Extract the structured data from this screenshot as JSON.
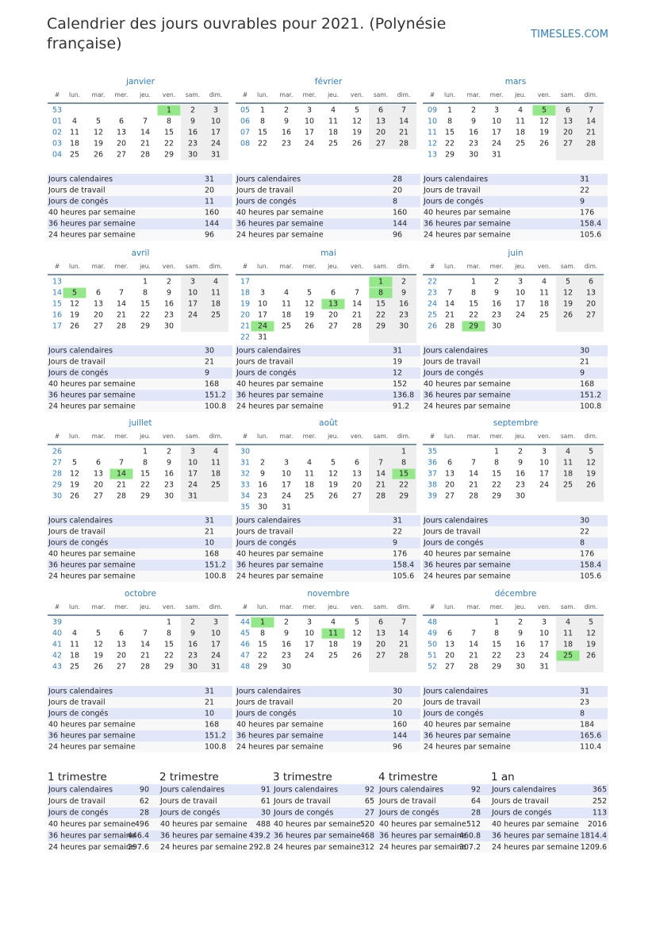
{
  "header": {
    "title": "Calendrier des jours ouvrables pour 2021. (Polynésie française)",
    "site": "TIMESLES.COM"
  },
  "weekday_header": [
    "#",
    "lun.",
    "mar.",
    "mer.",
    "jeu.",
    "ven.",
    "sam.",
    "dim."
  ],
  "stat_labels": [
    "Jours calendaires",
    "Jours de travail",
    "Jours de congés",
    "40 heures par semaine",
    "36 heures par semaine",
    "24 heures par semaine"
  ],
  "months": [
    {
      "name": "janvier",
      "holidays": [
        1
      ],
      "stats": [
        31,
        20,
        11,
        160,
        144,
        96
      ],
      "weeks": [
        {
          "num": "53",
          "days": [
            null,
            null,
            null,
            null,
            1,
            2,
            3
          ]
        },
        {
          "num": "01",
          "days": [
            4,
            5,
            6,
            7,
            8,
            9,
            10
          ]
        },
        {
          "num": "02",
          "days": [
            11,
            12,
            13,
            14,
            15,
            16,
            17
          ]
        },
        {
          "num": "03",
          "days": [
            18,
            19,
            20,
            21,
            22,
            23,
            24
          ]
        },
        {
          "num": "04",
          "days": [
            25,
            26,
            27,
            28,
            29,
            30,
            31
          ]
        }
      ]
    },
    {
      "name": "février",
      "holidays": [],
      "stats": [
        28,
        20,
        8,
        160,
        144,
        96
      ],
      "weeks": [
        {
          "num": "05",
          "days": [
            1,
            2,
            3,
            4,
            5,
            6,
            7
          ]
        },
        {
          "num": "06",
          "days": [
            8,
            9,
            10,
            11,
            12,
            13,
            14
          ]
        },
        {
          "num": "07",
          "days": [
            15,
            16,
            17,
            18,
            19,
            20,
            21
          ]
        },
        {
          "num": "08",
          "days": [
            22,
            23,
            24,
            25,
            26,
            27,
            28
          ]
        }
      ]
    },
    {
      "name": "mars",
      "holidays": [
        5
      ],
      "stats": [
        31,
        22,
        9,
        176,
        158.4,
        105.6
      ],
      "weeks": [
        {
          "num": "09",
          "days": [
            1,
            2,
            3,
            4,
            5,
            6,
            7
          ]
        },
        {
          "num": "10",
          "days": [
            8,
            9,
            10,
            11,
            12,
            13,
            14
          ]
        },
        {
          "num": "11",
          "days": [
            15,
            16,
            17,
            18,
            19,
            20,
            21
          ]
        },
        {
          "num": "12",
          "days": [
            22,
            23,
            24,
            25,
            26,
            27,
            28
          ]
        },
        {
          "num": "13",
          "days": [
            29,
            30,
            31,
            null,
            null,
            null,
            null
          ]
        }
      ]
    },
    {
      "name": "avril",
      "holidays": [
        5
      ],
      "stats": [
        30,
        21,
        9,
        168,
        151.2,
        100.8
      ],
      "weeks": [
        {
          "num": "13",
          "days": [
            null,
            null,
            null,
            1,
            2,
            3,
            4
          ]
        },
        {
          "num": "14",
          "days": [
            5,
            6,
            7,
            8,
            9,
            10,
            11
          ]
        },
        {
          "num": "15",
          "days": [
            12,
            13,
            14,
            15,
            16,
            17,
            18
          ]
        },
        {
          "num": "16",
          "days": [
            19,
            20,
            21,
            22,
            23,
            24,
            25
          ]
        },
        {
          "num": "17",
          "days": [
            26,
            27,
            28,
            29,
            30,
            null,
            null
          ]
        }
      ]
    },
    {
      "name": "mai",
      "holidays": [
        1,
        8,
        13,
        24
      ],
      "stats": [
        31,
        19,
        12,
        152,
        136.8,
        91.2
      ],
      "weeks": [
        {
          "num": "17",
          "days": [
            null,
            null,
            null,
            null,
            null,
            1,
            2
          ]
        },
        {
          "num": "18",
          "days": [
            3,
            4,
            5,
            6,
            7,
            8,
            9
          ]
        },
        {
          "num": "19",
          "days": [
            10,
            11,
            12,
            13,
            14,
            15,
            16
          ]
        },
        {
          "num": "20",
          "days": [
            17,
            18,
            19,
            20,
            21,
            22,
            23
          ]
        },
        {
          "num": "21",
          "days": [
            24,
            25,
            26,
            27,
            28,
            29,
            30
          ]
        },
        {
          "num": "22",
          "days": [
            31,
            null,
            null,
            null,
            null,
            null,
            null
          ]
        }
      ]
    },
    {
      "name": "juin",
      "holidays": [
        29
      ],
      "stats": [
        30,
        21,
        9,
        168,
        151.2,
        100.8
      ],
      "weeks": [
        {
          "num": "22",
          "days": [
            null,
            1,
            2,
            3,
            4,
            5,
            6
          ]
        },
        {
          "num": "23",
          "days": [
            7,
            8,
            9,
            10,
            11,
            12,
            13
          ]
        },
        {
          "num": "24",
          "days": [
            14,
            15,
            16,
            17,
            18,
            19,
            20
          ]
        },
        {
          "num": "25",
          "days": [
            21,
            22,
            23,
            24,
            25,
            26,
            27
          ]
        },
        {
          "num": "26",
          "days": [
            28,
            29,
            30,
            null,
            null,
            null,
            null
          ]
        }
      ]
    },
    {
      "name": "juillet",
      "holidays": [
        14
      ],
      "stats": [
        31,
        21,
        10,
        168,
        151.2,
        100.8
      ],
      "weeks": [
        {
          "num": "26",
          "days": [
            null,
            null,
            null,
            1,
            2,
            3,
            4
          ]
        },
        {
          "num": "27",
          "days": [
            5,
            6,
            7,
            8,
            9,
            10,
            11
          ]
        },
        {
          "num": "28",
          "days": [
            12,
            13,
            14,
            15,
            16,
            17,
            18
          ]
        },
        {
          "num": "29",
          "days": [
            19,
            20,
            21,
            22,
            23,
            24,
            25
          ]
        },
        {
          "num": "30",
          "days": [
            26,
            27,
            28,
            29,
            30,
            31,
            null
          ]
        }
      ]
    },
    {
      "name": "août",
      "holidays": [
        15
      ],
      "stats": [
        31,
        22,
        9,
        176,
        158.4,
        105.6
      ],
      "weeks": [
        {
          "num": "30",
          "days": [
            null,
            null,
            null,
            null,
            null,
            null,
            1
          ]
        },
        {
          "num": "31",
          "days": [
            2,
            3,
            4,
            5,
            6,
            7,
            8
          ]
        },
        {
          "num": "32",
          "days": [
            9,
            10,
            11,
            12,
            13,
            14,
            15
          ]
        },
        {
          "num": "33",
          "days": [
            16,
            17,
            18,
            19,
            20,
            21,
            22
          ]
        },
        {
          "num": "34",
          "days": [
            23,
            24,
            25,
            26,
            27,
            28,
            29
          ]
        },
        {
          "num": "35",
          "days": [
            30,
            31,
            null,
            null,
            null,
            null,
            null
          ]
        }
      ]
    },
    {
      "name": "septembre",
      "holidays": [],
      "stats": [
        30,
        22,
        8,
        176,
        158.4,
        105.6
      ],
      "weeks": [
        {
          "num": "35",
          "days": [
            null,
            null,
            1,
            2,
            3,
            4,
            5
          ]
        },
        {
          "num": "36",
          "days": [
            6,
            7,
            8,
            9,
            10,
            11,
            12
          ]
        },
        {
          "num": "37",
          "days": [
            13,
            14,
            15,
            16,
            17,
            18,
            19
          ]
        },
        {
          "num": "38",
          "days": [
            20,
            21,
            22,
            23,
            24,
            25,
            26
          ]
        },
        {
          "num": "39",
          "days": [
            27,
            28,
            29,
            30,
            null,
            null,
            null
          ]
        }
      ]
    },
    {
      "name": "octobre",
      "holidays": [],
      "stats": [
        31,
        21,
        10,
        168,
        151.2,
        100.8
      ],
      "weeks": [
        {
          "num": "39",
          "days": [
            null,
            null,
            null,
            null,
            1,
            2,
            3
          ]
        },
        {
          "num": "40",
          "days": [
            4,
            5,
            6,
            7,
            8,
            9,
            10
          ]
        },
        {
          "num": "41",
          "days": [
            11,
            12,
            13,
            14,
            15,
            16,
            17
          ]
        },
        {
          "num": "42",
          "days": [
            18,
            19,
            20,
            21,
            22,
            23,
            24
          ]
        },
        {
          "num": "43",
          "days": [
            25,
            26,
            27,
            28,
            29,
            30,
            31
          ]
        }
      ]
    },
    {
      "name": "novembre",
      "holidays": [
        1,
        11
      ],
      "stats": [
        30,
        20,
        10,
        160,
        144,
        96
      ],
      "weeks": [
        {
          "num": "44",
          "days": [
            1,
            2,
            3,
            4,
            5,
            6,
            7
          ]
        },
        {
          "num": "45",
          "days": [
            8,
            9,
            10,
            11,
            12,
            13,
            14
          ]
        },
        {
          "num": "46",
          "days": [
            15,
            16,
            17,
            18,
            19,
            20,
            21
          ]
        },
        {
          "num": "47",
          "days": [
            22,
            23,
            24,
            25,
            26,
            27,
            28
          ]
        },
        {
          "num": "48",
          "days": [
            29,
            30,
            null,
            null,
            null,
            null,
            null
          ]
        }
      ]
    },
    {
      "name": "décembre",
      "holidays": [
        25
      ],
      "stats": [
        31,
        23,
        8,
        184,
        165.6,
        110.4
      ],
      "weeks": [
        {
          "num": "48",
          "days": [
            null,
            null,
            1,
            2,
            3,
            4,
            5
          ]
        },
        {
          "num": "49",
          "days": [
            6,
            7,
            8,
            9,
            10,
            11,
            12
          ]
        },
        {
          "num": "50",
          "days": [
            13,
            14,
            15,
            16,
            17,
            18,
            19
          ]
        },
        {
          "num": "51",
          "days": [
            20,
            21,
            22,
            23,
            24,
            25,
            26
          ]
        },
        {
          "num": "52",
          "days": [
            27,
            28,
            29,
            30,
            31,
            null,
            null
          ]
        }
      ]
    }
  ],
  "quarters": [
    {
      "name": "1 trimestre",
      "stats": [
        90,
        62,
        28,
        496,
        446.4,
        297.6
      ]
    },
    {
      "name": "2 trimestre",
      "stats": [
        91,
        61,
        30,
        488,
        439.2,
        292.8
      ]
    },
    {
      "name": "3 trimestre",
      "stats": [
        92,
        65,
        27,
        520,
        468,
        312
      ]
    },
    {
      "name": "4 trimestre",
      "stats": [
        92,
        64,
        28,
        512,
        460.8,
        307.2
      ]
    },
    {
      "name": "1 an",
      "stats": [
        365,
        252,
        113,
        2016,
        1814.4,
        1209.6
      ]
    }
  ]
}
